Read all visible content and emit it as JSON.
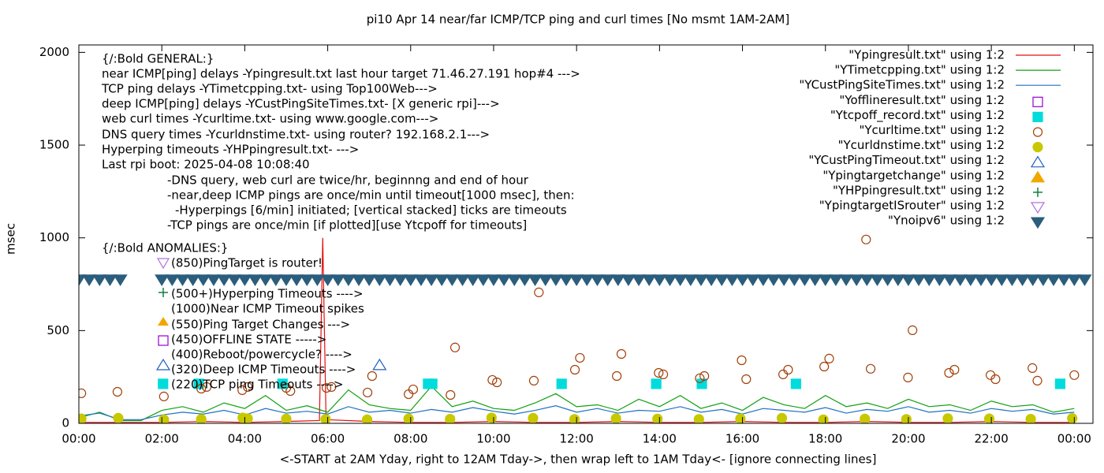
{
  "chart_data": {
    "type": "line",
    "title": "pi10 Apr 14  near/far ICMP/TCP ping and curl times [No msmt 1AM-2AM]",
    "x_label": "<-START at 2AM Yday, right to 12AM Tday->, then wrap left to 1AM Tday<- [ignore connecting lines]",
    "y_label": "msec",
    "xlim": [
      0,
      24.45
    ],
    "ylim": [
      0,
      2040
    ],
    "xticks": [
      {
        "value": 0,
        "label": "00:00"
      },
      {
        "value": 2,
        "label": "02:00"
      },
      {
        "value": 4,
        "label": "04:00"
      },
      {
        "value": 6,
        "label": "06:00"
      },
      {
        "value": 8,
        "label": "08:00"
      },
      {
        "value": 10,
        "label": "10:00"
      },
      {
        "value": 12,
        "label": "12:00"
      },
      {
        "value": 14,
        "label": "14:00"
      },
      {
        "value": 16,
        "label": "16:00"
      },
      {
        "value": 18,
        "label": "18:00"
      },
      {
        "value": 20,
        "label": "20:00"
      },
      {
        "value": 22,
        "label": "22:00"
      },
      {
        "value": 24,
        "label": "00:00"
      }
    ],
    "yticks": [
      0,
      500,
      1000,
      1500,
      2000
    ],
    "legend_position": "top-right",
    "series": [
      {
        "name": "\"Ypingresult.txt\" using 1:2",
        "color": "#e01010",
        "marker": "line",
        "x": [
          0,
          1,
          2,
          3,
          4,
          5,
          5.8,
          5.88,
          5.96,
          7,
          8,
          9,
          10,
          11,
          12,
          13,
          14,
          15,
          16,
          17,
          18,
          19,
          20,
          21,
          22,
          23,
          24
        ],
        "values": [
          5,
          5,
          5,
          10,
          5,
          10,
          15,
          1000,
          20,
          10,
          5,
          5,
          10,
          5,
          5,
          10,
          5,
          5,
          10,
          5,
          5,
          10,
          5,
          5,
          10,
          5,
          5
        ]
      },
      {
        "name": "\"YTimetcpping.txt\" using 1:2",
        "color": "#10a010",
        "marker": "line",
        "x": [
          0,
          0.5,
          1,
          1.5,
          2,
          2.5,
          3,
          3.5,
          4,
          4.5,
          5,
          5.5,
          6,
          6.5,
          7,
          7.5,
          8,
          8.5,
          9,
          9.5,
          10,
          10.5,
          11,
          11.5,
          12,
          12.5,
          13,
          13.5,
          14,
          14.5,
          15,
          15.5,
          16,
          16.5,
          17,
          17.5,
          18,
          18.5,
          19,
          19.5,
          20,
          20.5,
          21,
          21.5,
          22,
          22.5,
          23,
          23.5,
          24
        ],
        "values": [
          30,
          60,
          15,
          15,
          70,
          90,
          60,
          110,
          80,
          150,
          70,
          95,
          60,
          180,
          100,
          80,
          70,
          200,
          90,
          120,
          80,
          70,
          110,
          160,
          90,
          100,
          70,
          130,
          90,
          150,
          80,
          110,
          70,
          140,
          100,
          80,
          150,
          90,
          110,
          80,
          130,
          90,
          100,
          70,
          120,
          90,
          100,
          60,
          80
        ]
      },
      {
        "name": "\"YCustPingSiteTimes.txt\" using 1:2",
        "color": "#1f70c0",
        "marker": "line",
        "x": [
          0,
          0.5,
          1,
          1.5,
          2,
          2.5,
          3,
          3.5,
          4,
          4.5,
          5,
          5.5,
          6,
          6.5,
          7,
          7.5,
          8,
          8.5,
          9,
          9.5,
          10,
          10.5,
          11,
          11.5,
          12,
          12.5,
          13,
          13.5,
          14,
          14.5,
          15,
          15.5,
          16,
          16.5,
          17,
          17.5,
          18,
          18.5,
          19,
          19.5,
          20,
          20.5,
          21,
          21.5,
          22,
          22.5,
          23,
          23.5,
          24
        ],
        "values": [
          40,
          55,
          20,
          20,
          45,
          60,
          50,
          70,
          45,
          80,
          55,
          65,
          50,
          90,
          60,
          70,
          55,
          75,
          60,
          85,
          65,
          50,
          70,
          95,
          60,
          80,
          55,
          70,
          65,
          90,
          60,
          75,
          50,
          80,
          70,
          60,
          85,
          55,
          75,
          65,
          90,
          60,
          70,
          55,
          80,
          65,
          75,
          50,
          60
        ]
      },
      {
        "name": "\"Yofflineresult.txt\" using 1:2",
        "color": "#9400d3",
        "marker": "square-open",
        "x": [],
        "values": []
      },
      {
        "name": "\"Ytcpoff_record.txt\" using 1:2",
        "color": "#00dcdc",
        "marker": "square",
        "x": [
          2.03,
          2.89,
          4.91,
          8.42,
          8.52,
          11.64,
          13.92,
          15.02,
          17.29,
          23.66
        ],
        "values": [
          213,
          213,
          213,
          213,
          213,
          213,
          213,
          213,
          213,
          213
        ]
      },
      {
        "name": "\"Ycurltime.txt\" using 1:2",
        "color": "#a0400a",
        "marker": "circle-open",
        "x": [
          0.06,
          0.93,
          2.05,
          2.95,
          3.08,
          3.94,
          4.07,
          5.0,
          5.1,
          5.97,
          6.09,
          6.96,
          7.07,
          7.95,
          8.06,
          8.96,
          9.07,
          9.97,
          10.08,
          10.97,
          11.09,
          11.96,
          12.08,
          12.97,
          13.08,
          13.98,
          14.09,
          14.97,
          15.08,
          15.98,
          16.09,
          16.98,
          17.1,
          17.97,
          18.09,
          18.98,
          19.09,
          19.99,
          20.1,
          20.98,
          21.11,
          21.98,
          22.1,
          22.99,
          23.11,
          24.0
        ],
        "values": [
          162,
          170,
          145,
          187,
          196,
          179,
          196,
          191,
          174,
          191,
          196,
          166,
          255,
          157,
          183,
          153,
          409,
          234,
          221,
          230,
          706,
          289,
          353,
          255,
          374,
          272,
          264,
          243,
          255,
          340,
          238,
          264,
          289,
          306,
          349,
          991,
          294,
          247,
          502,
          272,
          289,
          260,
          238,
          298,
          230,
          260
        ]
      },
      {
        "name": "\"Ycurldnstime.txt\" using 1:2",
        "color": "#c8c800",
        "marker": "circle",
        "x": [
          0.06,
          0.95,
          2.05,
          2.95,
          3.95,
          4.07,
          5.0,
          5.95,
          6.95,
          7.95,
          8.95,
          9.95,
          10.95,
          11.95,
          12.95,
          13.95,
          14.95,
          15.95,
          16.95,
          17.95,
          18.95,
          19.95,
          20.95,
          21.95,
          22.95,
          23.95
        ],
        "values": [
          25,
          28,
          20,
          22,
          30,
          26,
          24,
          22,
          20,
          25,
          23,
          30,
          28,
          22,
          26,
          24,
          22,
          25,
          28,
          20,
          24,
          22,
          26,
          25,
          23,
          27
        ]
      },
      {
        "name": "\"YCustPingTimeout.txt\" using 1:2",
        "color": "#2060c0",
        "marker": "triangle-open",
        "x": [
          7.25
        ],
        "values": [
          315
        ]
      },
      {
        "name": "\"Ypingtargetchange\" using 1:2",
        "color": "#f0a800",
        "marker": "triangle",
        "x": [],
        "values": []
      },
      {
        "name": "\"YHPpingresult.txt\" using 1:2",
        "color": "#108040",
        "marker": "plus",
        "x": [],
        "values": []
      },
      {
        "name": "\"YpingtargetISrouter\" using 1:2",
        "color": "#b070e0",
        "marker": "triangle-down-open",
        "x": [],
        "values": []
      },
      {
        "name": "\"Ynoipv6\" using 1:2",
        "color": "#2b5d7d",
        "marker": "triangle-down",
        "x": [
          0,
          0.25,
          0.5,
          0.75,
          1,
          2,
          2.25,
          2.5,
          2.75,
          3,
          3.25,
          3.5,
          3.75,
          4,
          4.25,
          4.5,
          4.75,
          5,
          5.25,
          5.5,
          5.75,
          6,
          6.25,
          6.5,
          6.75,
          7,
          7.25,
          7.5,
          7.75,
          8,
          8.25,
          8.5,
          8.75,
          9,
          9.25,
          9.5,
          9.75,
          10,
          10.25,
          10.5,
          10.75,
          11,
          11.25,
          11.5,
          11.75,
          12,
          12.25,
          12.5,
          12.75,
          13,
          13.25,
          13.5,
          13.75,
          14,
          14.25,
          14.5,
          14.75,
          15,
          15.25,
          15.5,
          15.75,
          16,
          16.25,
          16.5,
          16.75,
          17,
          17.25,
          17.5,
          17.75,
          18,
          18.25,
          18.5,
          18.75,
          19,
          19.25,
          19.5,
          19.75,
          20,
          20.25,
          20.5,
          20.75,
          21,
          21.25,
          21.5,
          21.75,
          22,
          22.25,
          22.5,
          22.75,
          23,
          23.25,
          23.5,
          23.75,
          24,
          24.25
        ],
        "values": [
          774,
          774,
          774,
          774,
          774,
          774,
          774,
          774,
          774,
          774,
          774,
          774,
          774,
          774,
          774,
          774,
          774,
          774,
          774,
          774,
          774,
          774,
          774,
          774,
          774,
          774,
          774,
          774,
          774,
          774,
          774,
          774,
          774,
          774,
          774,
          774,
          774,
          774,
          774,
          774,
          774,
          774,
          774,
          774,
          774,
          774,
          774,
          774,
          774,
          774,
          774,
          774,
          774,
          774,
          774,
          774,
          774,
          774,
          774,
          774,
          774,
          774,
          774,
          774,
          774,
          774,
          774,
          774,
          774,
          774,
          774,
          774,
          774,
          774,
          774,
          774,
          774,
          774,
          774,
          774,
          774,
          774,
          774,
          774,
          774,
          774,
          774,
          774,
          774,
          774,
          774,
          774,
          774,
          774,
          774
        ]
      }
    ],
    "annotations": [
      "{/:Bold GENERAL:}",
      "near ICMP[ping] delays -Ypingresult.txt last hour target 71.46.27.191 hop#4 --->",
      "TCP ping delays -YTimetcpping.txt- using Top100Web--->",
      "deep ICMP[ping] delays -YCustPingSiteTimes.txt- [X generic rpi]--->",
      "web curl times -Ycurltime.txt- using www.google.com--->",
      "DNS query times -Ycurldnstime.txt- using router? 192.168.2.1--->",
      "Hyperping timeouts -YHPpingresult.txt- --->",
      "Last rpi boot: 2025-04-08 10:08:40",
      "-DNS query, web curl are twice/hr, beginnng and end of hour",
      "-near,deep ICMP pings are once/min until timeout[1000 msec], then:",
      "-Hyperpings [6/min] initiated; [vertical stacked] ticks are timeouts",
      "-TCP pings are once/min [if plotted][use Ytcpoff for timeouts]",
      "{/:Bold ANOMALIES:}",
      "(850)PingTarget is router!",
      "(500+)Hyperping Timeouts ---->",
      "(1000)Near ICMP Timeout spikes",
      "(550)Ping Target Changes --->",
      "(450)OFFLINE STATE ----->",
      "(400)Reboot/powercycle? ---->",
      "(320)Deep ICMP Timeouts ---->",
      "(220)TCP ping Timeouts ---->"
    ]
  }
}
